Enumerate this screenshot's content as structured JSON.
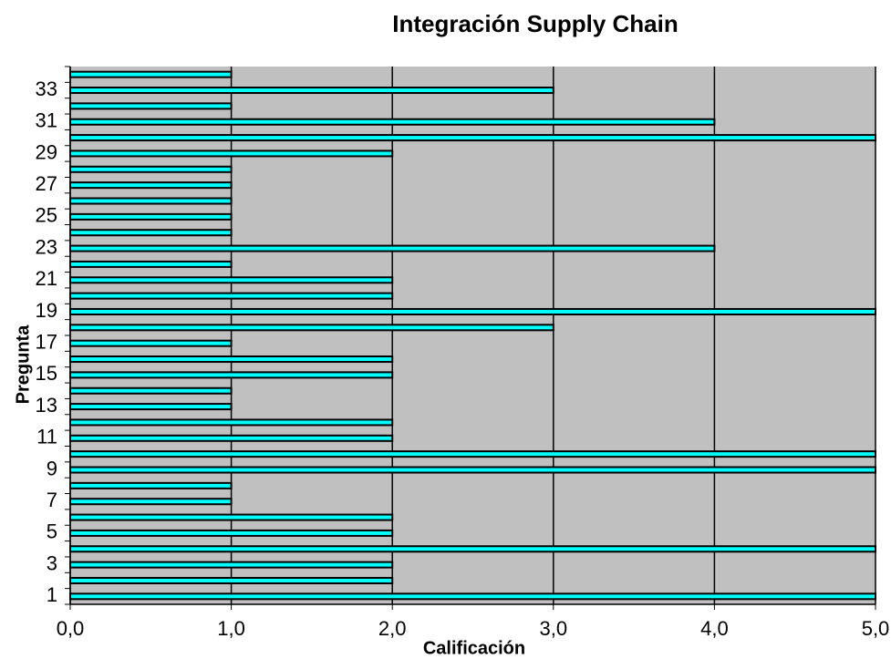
{
  "chart_data": {
    "type": "bar",
    "orientation": "horizontal",
    "title": "Integración Supply Chain",
    "x_label": "Calificación",
    "y_label": "Pregunta",
    "categories": [
      "1",
      null,
      "3",
      null,
      "5",
      null,
      "7",
      null,
      "9",
      null,
      "11",
      null,
      "13",
      null,
      "15",
      null,
      "17",
      null,
      "19",
      null,
      "21",
      null,
      "23",
      null,
      "25",
      null,
      "27",
      null,
      "29",
      null,
      "31",
      null,
      "33",
      null
    ],
    "values": [
      5,
      2,
      2,
      5,
      2,
      2,
      1,
      1,
      5,
      5,
      2,
      2,
      1,
      1,
      2,
      2,
      1,
      3,
      5,
      2,
      2,
      1,
      4,
      1,
      1,
      1,
      1,
      1,
      2,
      5,
      4,
      1,
      3,
      1
    ],
    "color": "#00ffff",
    "background": "#c0c0c0",
    "grid": true,
    "xlim": [
      0,
      5
    ],
    "xticks": [
      {
        "value": 0,
        "label": "0,0"
      },
      {
        "value": 1,
        "label": "1,0"
      },
      {
        "value": 2,
        "label": "2,0"
      },
      {
        "value": 3,
        "label": "3,0"
      },
      {
        "value": 4,
        "label": "4,0"
      },
      {
        "value": 5,
        "label": "5,0"
      }
    ]
  }
}
